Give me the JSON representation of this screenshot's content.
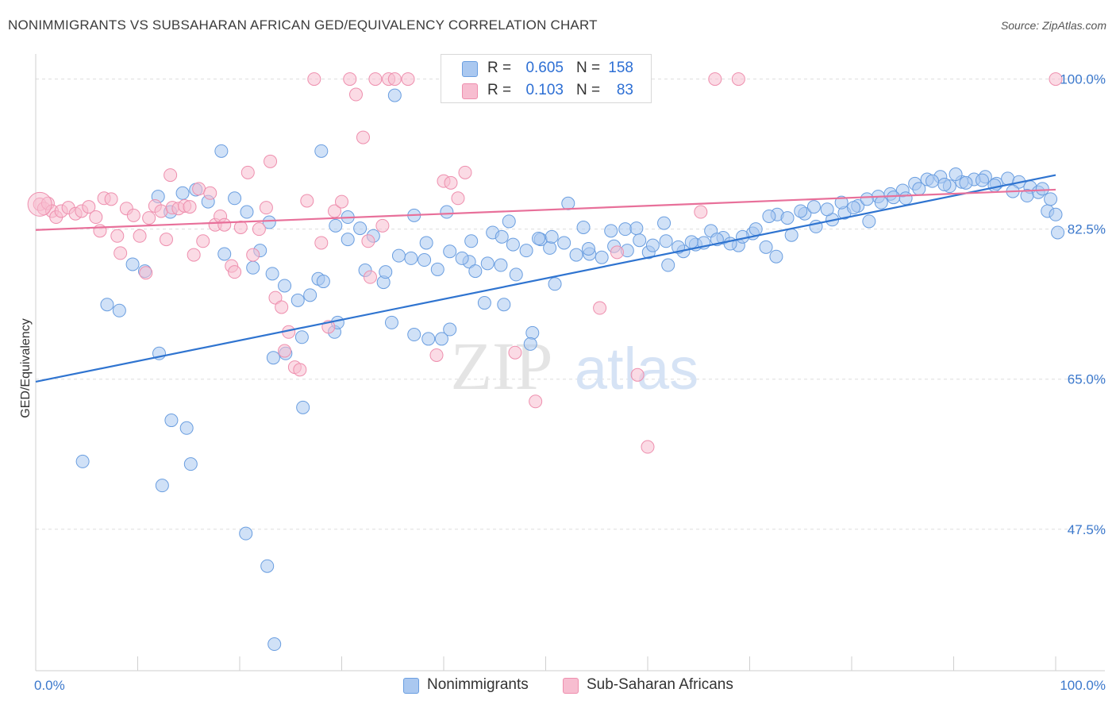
{
  "header": {
    "title": "NONIMMIGRANTS VS SUBSAHARAN AFRICAN GED/EQUIVALENCY CORRELATION CHART",
    "source": "Source: ZipAtlas.com"
  },
  "watermark": {
    "zip": "ZIP",
    "atlas": "atlas"
  },
  "legend": {
    "rows": [
      {
        "r_label": "R =",
        "r_value": "0.605",
        "n_label": "N =",
        "n_value": "158"
      },
      {
        "r_label": "R =",
        "r_value": "0.103",
        "n_label": "N =",
        "n_value": "83"
      }
    ]
  },
  "bottom_legend": [
    "Nonimmigrants",
    "Sub-Saharan Africans"
  ],
  "colors": {
    "blue_fill": "#aac8f0",
    "blue_stroke": "#6a9ee0",
    "blue_line": "#2f74d0",
    "pink_fill": "#f7bdd0",
    "pink_stroke": "#ee8fae",
    "pink_line": "#e8709a",
    "tick_label": "#3b78cc",
    "grid": "#dddddd"
  },
  "chart_data": {
    "type": "scatter",
    "title": "NONIMMIGRANTS VS SUBSAHARAN AFRICAN GED/EQUIVALENCY CORRELATION CHART",
    "xlabel": "",
    "ylabel": "GED/Equivalency",
    "xlim": [
      0,
      100
    ],
    "ylim": [
      31,
      102
    ],
    "x_tick_labels": [
      "0.0%",
      "100.0%"
    ],
    "y_ticks": [
      47.5,
      65.0,
      82.5,
      100.0
    ],
    "y_tick_labels": [
      "47.5%",
      "65.0%",
      "82.5%",
      "100.0%"
    ],
    "grid": true,
    "legend_position": "top-center",
    "series": [
      {
        "name": "Nonimmigrants",
        "color": "#aac8f0",
        "trend": [
          [
            0,
            64.7
          ],
          [
            100,
            88.8
          ]
        ],
        "points": [
          [
            4.6,
            55.4
          ],
          [
            12.4,
            52.6
          ],
          [
            18.5,
            79.6
          ],
          [
            23.3,
            67.5
          ],
          [
            21.3,
            78.0
          ],
          [
            24.5,
            68.0
          ],
          [
            26.1,
            69.9
          ],
          [
            22.9,
            83.3
          ],
          [
            30.6,
            81.3
          ],
          [
            26.2,
            61.7
          ],
          [
            27.7,
            76.7
          ],
          [
            29.3,
            70.5
          ],
          [
            29.6,
            71.6
          ],
          [
            32.3,
            77.7
          ],
          [
            34.1,
            76.3
          ],
          [
            34.9,
            71.6
          ],
          [
            37.1,
            70.2
          ],
          [
            38.5,
            69.7
          ],
          [
            40.6,
            70.8
          ],
          [
            42.5,
            78.7
          ],
          [
            44.0,
            73.9
          ],
          [
            45.9,
            73.7
          ],
          [
            48.7,
            70.4
          ],
          [
            50.9,
            76.1
          ],
          [
            47.1,
            77.2
          ],
          [
            48.5,
            69.1
          ],
          [
            50.4,
            80.3
          ],
          [
            37.1,
            84.1
          ],
          [
            38.3,
            80.9
          ],
          [
            40.3,
            84.5
          ],
          [
            42.7,
            81.1
          ],
          [
            44.8,
            82.1
          ],
          [
            45.7,
            81.6
          ],
          [
            46.4,
            83.4
          ],
          [
            49.5,
            81.3
          ],
          [
            52.2,
            85.5
          ],
          [
            53.7,
            82.7
          ],
          [
            54.3,
            79.6
          ],
          [
            56.4,
            82.3
          ],
          [
            57.8,
            82.5
          ],
          [
            58.9,
            82.6
          ],
          [
            60.1,
            79.8
          ],
          [
            61.6,
            83.2
          ],
          [
            62.0,
            78.3
          ],
          [
            63.5,
            79.9
          ],
          [
            64.7,
            80.7
          ],
          [
            66.2,
            82.3
          ],
          [
            67.4,
            81.5
          ],
          [
            68.9,
            80.6
          ],
          [
            70.3,
            82.0
          ],
          [
            71.6,
            80.4
          ],
          [
            72.7,
            84.2
          ],
          [
            74.1,
            81.8
          ],
          [
            75.4,
            84.3
          ],
          [
            72.6,
            79.3
          ],
          [
            76.5,
            82.8
          ],
          [
            78.1,
            83.6
          ],
          [
            79.3,
            84.4
          ],
          [
            80.6,
            85.2
          ],
          [
            81.7,
            83.4
          ],
          [
            82.6,
            86.3
          ],
          [
            83.8,
            86.6
          ],
          [
            85.0,
            87.0
          ],
          [
            86.2,
            87.8
          ],
          [
            87.4,
            88.3
          ],
          [
            88.7,
            88.6
          ],
          [
            89.6,
            87.5
          ],
          [
            90.8,
            88.0
          ],
          [
            92.0,
            88.3
          ],
          [
            93.1,
            88.6
          ],
          [
            94.2,
            87.8
          ],
          [
            95.3,
            88.4
          ],
          [
            96.4,
            88.0
          ],
          [
            97.5,
            87.4
          ],
          [
            98.3,
            86.8
          ],
          [
            99.2,
            84.6
          ],
          [
            98.7,
            87.2
          ],
          [
            100.0,
            84.2
          ],
          [
            100.2,
            82.1
          ],
          [
            99.5,
            86.0
          ],
          [
            97.2,
            86.4
          ],
          [
            95.8,
            86.9
          ],
          [
            94.0,
            87.6
          ],
          [
            92.8,
            88.2
          ],
          [
            91.2,
            87.9
          ],
          [
            90.2,
            88.9
          ],
          [
            89.1,
            87.7
          ],
          [
            87.9,
            88.1
          ],
          [
            86.6,
            87.2
          ],
          [
            85.3,
            86.1
          ],
          [
            84.1,
            86.2
          ],
          [
            82.9,
            85.6
          ],
          [
            81.5,
            86.0
          ],
          [
            80.2,
            85.0
          ],
          [
            79.0,
            85.6
          ],
          [
            77.6,
            84.8
          ],
          [
            76.3,
            85.1
          ],
          [
            75.0,
            84.6
          ],
          [
            73.7,
            83.8
          ],
          [
            71.9,
            84.0
          ],
          [
            70.6,
            82.5
          ],
          [
            69.3,
            81.6
          ],
          [
            68.1,
            80.8
          ],
          [
            66.8,
            81.3
          ],
          [
            65.5,
            80.9
          ],
          [
            64.3,
            81.0
          ],
          [
            63.0,
            80.4
          ],
          [
            61.8,
            81.1
          ],
          [
            60.5,
            80.6
          ],
          [
            59.2,
            81.2
          ],
          [
            58.0,
            80.0
          ],
          [
            56.7,
            80.5
          ],
          [
            55.5,
            79.2
          ],
          [
            54.2,
            80.2
          ],
          [
            53.0,
            79.5
          ],
          [
            51.8,
            80.9
          ],
          [
            50.6,
            81.6
          ],
          [
            49.3,
            81.4
          ],
          [
            48.1,
            80.0
          ],
          [
            46.8,
            80.7
          ],
          [
            45.6,
            78.3
          ],
          [
            44.3,
            78.5
          ],
          [
            43.1,
            77.6
          ],
          [
            41.8,
            79.1
          ],
          [
            40.6,
            79.9
          ],
          [
            39.4,
            77.8
          ],
          [
            38.1,
            78.9
          ],
          [
            36.8,
            79.1
          ],
          [
            35.6,
            79.4
          ],
          [
            34.3,
            77.5
          ],
          [
            33.1,
            81.7
          ],
          [
            31.8,
            82.6
          ],
          [
            30.6,
            83.9
          ],
          [
            29.4,
            82.9
          ],
          [
            28.2,
            76.4
          ],
          [
            26.9,
            74.8
          ],
          [
            25.7,
            74.2
          ],
          [
            24.4,
            75.9
          ],
          [
            23.2,
            77.3
          ],
          [
            22.0,
            80.0
          ],
          [
            20.7,
            84.5
          ],
          [
            19.5,
            86.1
          ],
          [
            18.2,
            91.6
          ],
          [
            16.9,
            85.7
          ],
          [
            15.7,
            87.1
          ],
          [
            14.4,
            86.7
          ],
          [
            13.2,
            84.5
          ],
          [
            12.0,
            86.3
          ],
          [
            10.7,
            77.6
          ],
          [
            9.5,
            78.4
          ],
          [
            8.2,
            73.0
          ],
          [
            7.0,
            73.7
          ],
          [
            12.1,
            68.0
          ],
          [
            13.3,
            60.2
          ],
          [
            14.8,
            59.3
          ],
          [
            15.2,
            55.1
          ],
          [
            20.6,
            47.0
          ],
          [
            22.7,
            43.2
          ],
          [
            23.4,
            34.1
          ],
          [
            28.0,
            91.6
          ],
          [
            35.2,
            98.1
          ],
          [
            39.8,
            69.7
          ]
        ]
      },
      {
        "name": "Sub-Saharan Africans",
        "color": "#f7bdd0",
        "trend": [
          [
            0,
            82.4
          ],
          [
            100,
            87.1
          ]
        ],
        "points": [
          [
            0.4,
            85.4
          ],
          [
            0.8,
            84.9
          ],
          [
            1.2,
            85.5
          ],
          [
            1.6,
            84.6
          ],
          [
            2.0,
            83.9
          ],
          [
            2.5,
            84.6
          ],
          [
            3.2,
            85.0
          ],
          [
            3.9,
            84.3
          ],
          [
            4.5,
            84.6
          ],
          [
            5.2,
            85.1
          ],
          [
            5.9,
            83.9
          ],
          [
            6.3,
            82.3
          ],
          [
            6.7,
            86.1
          ],
          [
            7.4,
            86.0
          ],
          [
            8.0,
            81.7
          ],
          [
            8.3,
            79.7
          ],
          [
            8.9,
            84.9
          ],
          [
            9.6,
            84.1
          ],
          [
            10.2,
            81.7
          ],
          [
            10.8,
            77.4
          ],
          [
            11.1,
            83.8
          ],
          [
            11.7,
            85.2
          ],
          [
            12.3,
            84.6
          ],
          [
            12.8,
            81.3
          ],
          [
            13.2,
            88.8
          ],
          [
            13.4,
            85.0
          ],
          [
            14.0,
            84.9
          ],
          [
            14.6,
            85.2
          ],
          [
            15.1,
            85.1
          ],
          [
            15.5,
            79.5
          ],
          [
            16.0,
            87.2
          ],
          [
            16.4,
            81.1
          ],
          [
            17.1,
            86.7
          ],
          [
            17.6,
            83.0
          ],
          [
            18.1,
            84.0
          ],
          [
            18.5,
            83.0
          ],
          [
            19.2,
            78.2
          ],
          [
            19.5,
            77.5
          ],
          [
            20.1,
            82.7
          ],
          [
            20.8,
            89.1
          ],
          [
            21.3,
            79.5
          ],
          [
            21.9,
            82.5
          ],
          [
            22.6,
            85.0
          ],
          [
            23.0,
            90.4
          ],
          [
            23.5,
            74.5
          ],
          [
            24.1,
            73.4
          ],
          [
            24.8,
            70.5
          ],
          [
            25.4,
            66.4
          ],
          [
            25.9,
            66.1
          ],
          [
            26.6,
            85.8
          ],
          [
            27.3,
            100.0
          ],
          [
            28.0,
            80.9
          ],
          [
            28.7,
            71.1
          ],
          [
            29.3,
            84.6
          ],
          [
            30.0,
            85.7
          ],
          [
            30.8,
            100.0
          ],
          [
            31.4,
            98.2
          ],
          [
            32.1,
            93.2
          ],
          [
            32.6,
            81.1
          ],
          [
            33.3,
            100.0
          ],
          [
            34.0,
            82.9
          ],
          [
            34.6,
            100.0
          ],
          [
            35.2,
            100.0
          ],
          [
            36.5,
            100.0
          ],
          [
            39.3,
            67.8
          ],
          [
            40.0,
            88.1
          ],
          [
            40.7,
            87.9
          ],
          [
            41.4,
            86.1
          ],
          [
            42.1,
            89.1
          ],
          [
            43.7,
            100.0
          ],
          [
            47.0,
            68.1
          ],
          [
            48.1,
            100.0
          ],
          [
            49.0,
            62.4
          ],
          [
            55.3,
            73.3
          ],
          [
            57.0,
            79.8
          ],
          [
            59.0,
            65.5
          ],
          [
            60.0,
            57.1
          ],
          [
            65.2,
            84.5
          ],
          [
            66.6,
            100.0
          ],
          [
            68.9,
            100.0
          ],
          [
            100.0,
            100.0
          ],
          [
            24.4,
            68.3
          ],
          [
            32.8,
            76.9
          ]
        ]
      }
    ]
  }
}
